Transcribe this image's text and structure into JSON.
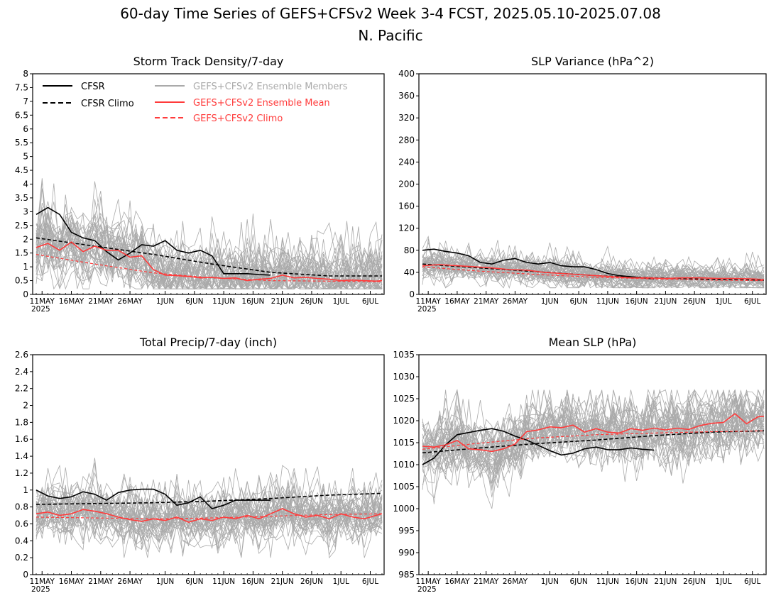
{
  "figure": {
    "title_line1": "60-day Time Series of GEFS+CFSv2 Week 3-4 FCST, 2025.05.10-2025.07.08",
    "title_line2": "N. Pacific"
  },
  "colors": {
    "cfsr": "#000000",
    "ensemble_members": "#aaaaaa",
    "ensemble_mean": "#ff3b3b",
    "gefs_climo": "#ff3b3b"
  },
  "legend": {
    "cfsr": "CFSR",
    "cfsr_climo": "CFSR Climo",
    "members": "GEFS+CFSv2 Ensemble Members",
    "mean": "GEFS+CFSv2 Ensemble Mean",
    "gefs_climo": "GEFS+CFSv2 Climo"
  },
  "chart_data": [
    {
      "type": "line",
      "title": "Storm Track Density/7-day",
      "x_axis": {
        "start": "2025-05-10",
        "end": "2025-07-08",
        "tick_labels": [
          "11MAY",
          "16MAY",
          "21MAY",
          "26MAY",
          "1JUN",
          "6JUN",
          "11JUN",
          "16JUN",
          "21JUN",
          "26JUN",
          "1JUL",
          "6JUL"
        ],
        "year_label": "2025"
      },
      "ylim": [
        0,
        8
      ],
      "y_ticks": [
        "0",
        "0.5",
        "1",
        "1.5",
        "2",
        "2.5",
        "3",
        "3.5",
        "4",
        "4.5",
        "5",
        "5.5",
        "6",
        "6.5",
        "7",
        "7.5",
        "8"
      ],
      "legend_position": "top-left",
      "members": {
        "count": 40,
        "approx_range": [
          0.2,
          4.6
        ]
      },
      "series": [
        {
          "name": "CFSR",
          "style": "solid-black",
          "days": [
            0,
            2,
            4,
            6,
            8,
            10,
            12,
            14,
            16,
            18,
            20,
            22,
            24,
            26,
            28,
            30,
            32,
            34,
            36,
            38,
            40
          ],
          "values": [
            2.9,
            3.15,
            2.9,
            2.25,
            2.05,
            1.95,
            1.55,
            1.25,
            1.5,
            1.8,
            1.75,
            1.95,
            1.6,
            1.5,
            1.6,
            1.4,
            0.75,
            0.75,
            0.75,
            0.72,
            0.7
          ]
        },
        {
          "name": "CFSR Climo",
          "style": "dashed-black",
          "days": [
            0,
            10,
            20,
            30,
            40,
            50,
            59
          ],
          "values": [
            2.05,
            1.75,
            1.45,
            1.1,
            0.8,
            0.67,
            0.67
          ]
        },
        {
          "name": "GEFS+CFSv2 Ensemble Mean",
          "style": "solid-red",
          "days": [
            0,
            2,
            4,
            6,
            8,
            10,
            12,
            14,
            16,
            18,
            20,
            22,
            24,
            26,
            28,
            30,
            32,
            34,
            36,
            38,
            40,
            42,
            44,
            46,
            48,
            50,
            52,
            54,
            56,
            58,
            59
          ],
          "values": [
            1.7,
            1.85,
            1.6,
            1.9,
            1.55,
            1.75,
            1.6,
            1.6,
            1.35,
            1.4,
            0.9,
            0.7,
            0.68,
            0.65,
            0.6,
            0.62,
            0.58,
            0.6,
            0.5,
            0.55,
            0.58,
            0.7,
            0.6,
            0.62,
            0.58,
            0.55,
            0.5,
            0.52,
            0.5,
            0.48,
            0.5
          ]
        },
        {
          "name": "GEFS+CFSv2 Climo",
          "style": "dashed-red",
          "days": [
            0,
            10,
            20,
            30,
            40,
            50,
            59
          ],
          "values": [
            1.45,
            1.1,
            0.78,
            0.6,
            0.5,
            0.48,
            0.46
          ]
        }
      ]
    },
    {
      "type": "line",
      "title": "SLP Variance (hPa^2)",
      "x_axis": {
        "start": "2025-05-10",
        "end": "2025-07-08",
        "tick_labels": [
          "11MAY",
          "16MAY",
          "21MAY",
          "26MAY",
          "1JUN",
          "6JUN",
          "11JUN",
          "16JUN",
          "21JUN",
          "26JUN",
          "1JUL",
          "6JUL"
        ],
        "year_label": "2025"
      },
      "ylim": [
        0,
        400
      ],
      "y_ticks": [
        "0",
        "40",
        "80",
        "120",
        "160",
        "200",
        "240",
        "280",
        "320",
        "360",
        "400"
      ],
      "members": {
        "count": 40,
        "approx_range": [
          12,
          105
        ]
      },
      "series": [
        {
          "name": "CFSR",
          "style": "solid-black",
          "days": [
            0,
            2,
            4,
            6,
            8,
            10,
            12,
            14,
            16,
            18,
            20,
            22,
            24,
            26,
            28,
            30,
            32,
            34,
            36,
            38,
            40
          ],
          "values": [
            80,
            82,
            78,
            75,
            70,
            58,
            55,
            62,
            65,
            58,
            55,
            58,
            52,
            50,
            50,
            45,
            38,
            34,
            32,
            30,
            28
          ]
        },
        {
          "name": "CFSR Climo",
          "style": "dashed-black",
          "days": [
            0,
            10,
            20,
            30,
            40,
            50,
            59
          ],
          "values": [
            55,
            48,
            41,
            34,
            30,
            27,
            26
          ]
        },
        {
          "name": "GEFS+CFSv2 Ensemble Mean",
          "style": "solid-red",
          "days": [
            0,
            3,
            6,
            9,
            12,
            15,
            18,
            21,
            24,
            27,
            30,
            33,
            36,
            39,
            42,
            45,
            48,
            51,
            54,
            57,
            59
          ],
          "values": [
            52,
            54,
            52,
            50,
            48,
            45,
            44,
            40,
            38,
            36,
            34,
            32,
            30,
            30,
            29,
            30,
            30,
            29,
            29,
            28,
            27
          ]
        },
        {
          "name": "GEFS+CFSv2 Climo",
          "style": "dashed-red",
          "days": [
            0,
            10,
            20,
            30,
            40,
            50,
            59
          ],
          "values": [
            50,
            42,
            36,
            31,
            28,
            26,
            25
          ]
        }
      ]
    },
    {
      "type": "line",
      "title": "Total Precip/7-day (inch)",
      "x_axis": {
        "start": "2025-05-10",
        "end": "2025-07-08",
        "tick_labels": [
          "11MAY",
          "16MAY",
          "21MAY",
          "26MAY",
          "1JUN",
          "6JUN",
          "11JUN",
          "16JUN",
          "21JUN",
          "26JUN",
          "1JUL",
          "6JUL"
        ],
        "year_label": "2025"
      },
      "ylim": [
        0,
        2.6
      ],
      "y_ticks": [
        "0",
        "0.2",
        "0.4",
        "0.6",
        "0.8",
        "1",
        "1.2",
        "1.4",
        "1.6",
        "1.8",
        "2",
        "2.2",
        "2.4",
        "2.6"
      ],
      "members": {
        "count": 40,
        "approx_range": [
          0.2,
          1.38
        ]
      },
      "series": [
        {
          "name": "CFSR",
          "style": "solid-black",
          "days": [
            0,
            2,
            4,
            6,
            8,
            10,
            12,
            14,
            16,
            18,
            20,
            22,
            24,
            26,
            28,
            30,
            32,
            34,
            36,
            38,
            40
          ],
          "values": [
            1.0,
            0.93,
            0.9,
            0.92,
            0.98,
            0.95,
            0.88,
            0.97,
            1.0,
            1.01,
            1.01,
            0.95,
            0.82,
            0.85,
            0.92,
            0.78,
            0.82,
            0.88,
            0.88,
            0.88,
            0.88
          ]
        },
        {
          "name": "CFSR Climo",
          "style": "dashed-black",
          "days": [
            0,
            10,
            20,
            30,
            40,
            50,
            59
          ],
          "values": [
            0.83,
            0.84,
            0.85,
            0.87,
            0.9,
            0.94,
            0.96
          ]
        },
        {
          "name": "GEFS+CFSv2 Ensemble Mean",
          "style": "solid-red",
          "days": [
            0,
            2,
            4,
            6,
            8,
            10,
            12,
            14,
            16,
            18,
            20,
            22,
            24,
            26,
            28,
            30,
            32,
            34,
            36,
            38,
            40,
            42,
            44,
            46,
            48,
            50,
            52,
            54,
            56,
            58,
            59
          ],
          "values": [
            0.72,
            0.74,
            0.7,
            0.72,
            0.77,
            0.75,
            0.72,
            0.68,
            0.65,
            0.63,
            0.66,
            0.64,
            0.68,
            0.62,
            0.66,
            0.64,
            0.68,
            0.66,
            0.7,
            0.66,
            0.72,
            0.78,
            0.72,
            0.68,
            0.7,
            0.66,
            0.72,
            0.68,
            0.66,
            0.7,
            0.72
          ]
        },
        {
          "name": "GEFS+CFSv2 Climo",
          "style": "dashed-red",
          "days": [
            0,
            10,
            20,
            30,
            40,
            50,
            59
          ],
          "values": [
            0.68,
            0.67,
            0.66,
            0.67,
            0.69,
            0.71,
            0.72
          ]
        }
      ]
    },
    {
      "type": "line",
      "title": "Mean SLP (hPa)",
      "x_axis": {
        "start": "2025-05-10",
        "end": "2025-07-08",
        "tick_labels": [
          "11MAY",
          "16MAY",
          "21MAY",
          "26MAY",
          "1JUN",
          "6JUN",
          "11JUN",
          "16JUN",
          "21JUN",
          "26JUN",
          "1JUL",
          "6JUL"
        ],
        "year_label": "2025"
      },
      "ylim": [
        985,
        1035
      ],
      "y_ticks": [
        "985",
        "990",
        "995",
        "1000",
        "1005",
        "1010",
        "1015",
        "1020",
        "1025",
        "1030",
        "1035"
      ],
      "members": {
        "count": 40,
        "approx_range": [
          1000,
          1027
        ]
      },
      "series": [
        {
          "name": "CFSR",
          "style": "solid-black",
          "days": [
            0,
            2,
            4,
            6,
            8,
            10,
            12,
            14,
            16,
            18,
            20,
            22,
            24,
            26,
            28,
            30,
            32,
            34,
            36,
            38,
            40
          ],
          "values": [
            1010.0,
            1011.5,
            1014.5,
            1016.8,
            1017.3,
            1017.8,
            1018.2,
            1017.6,
            1016.5,
            1015.6,
            1014.4,
            1013.2,
            1012.2,
            1012.6,
            1013.6,
            1014.0,
            1013.4,
            1013.4,
            1013.8,
            1013.5,
            1013.3
          ]
        },
        {
          "name": "CFSR Climo",
          "style": "dashed-black",
          "days": [
            0,
            10,
            20,
            30,
            40,
            50,
            59
          ],
          "values": [
            1012.7,
            1013.8,
            1014.8,
            1015.6,
            1016.6,
            1017.4,
            1017.7
          ]
        },
        {
          "name": "GEFS+CFSv2 Ensemble Mean",
          "style": "solid-red",
          "days": [
            0,
            2,
            4,
            6,
            8,
            10,
            12,
            14,
            16,
            18,
            20,
            22,
            24,
            26,
            28,
            30,
            32,
            34,
            36,
            38,
            40,
            42,
            44,
            46,
            48,
            50,
            52,
            54,
            56,
            58,
            59
          ],
          "values": [
            1014.2,
            1014.0,
            1014.5,
            1015.5,
            1013.6,
            1013.4,
            1013.0,
            1013.6,
            1014.7,
            1017.5,
            1017.9,
            1018.6,
            1018.4,
            1019.0,
            1017.4,
            1018.2,
            1017.4,
            1017.2,
            1018.2,
            1017.8,
            1018.3,
            1017.9,
            1018.3,
            1018.0,
            1018.9,
            1019.4,
            1019.6,
            1021.6,
            1019.3,
            1020.9,
            1021.0
          ]
        },
        {
          "name": "GEFS+CFSv2 Climo",
          "style": "dashed-red",
          "days": [
            0,
            10,
            20,
            30,
            40,
            50,
            59
          ],
          "values": [
            1013.5,
            1014.9,
            1016.1,
            1016.8,
            1017.2,
            1017.5,
            1017.7
          ]
        }
      ]
    }
  ]
}
